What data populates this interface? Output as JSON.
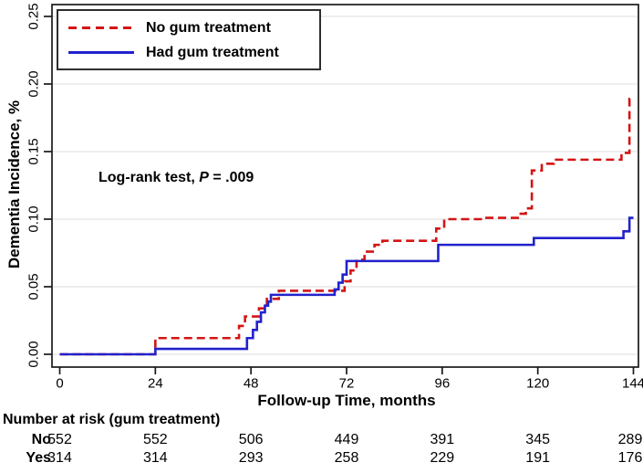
{
  "chart_data": {
    "type": "line",
    "subtype": "step-cumulative-incidence",
    "title": "",
    "xlabel": "Follow-up Time, months",
    "ylabel": "Dementia Incidence, %",
    "xlim": [
      0,
      144
    ],
    "ylim": [
      0,
      0.25
    ],
    "xticks": [
      0,
      24,
      48,
      72,
      96,
      120,
      144
    ],
    "ytick_labels": [
      "0.00",
      "0.05",
      "0.10",
      "0.15",
      "0.20",
      "0.25"
    ],
    "grid": true,
    "legend_position": "top-left",
    "annotation": {
      "prefix": "Log-rank test, ",
      "stat": "P",
      "suffix": " = .009"
    },
    "colors": {
      "no_treatment": "#d41414",
      "had_treatment": "#2222cc",
      "gridline": "#e8e8e8",
      "frame": "#1a1a1a"
    },
    "series": [
      {
        "name": "No gum treatment",
        "color_key": "no_treatment",
        "style": "dashed",
        "step_points": [
          [
            0,
            0
          ],
          [
            24,
            0.012
          ],
          [
            45,
            0.021
          ],
          [
            46.5,
            0.028
          ],
          [
            50,
            0.034
          ],
          [
            52,
            0.041
          ],
          [
            55,
            0.047
          ],
          [
            71.5,
            0.054
          ],
          [
            73,
            0.062
          ],
          [
            74.5,
            0.07
          ],
          [
            76.5,
            0.076
          ],
          [
            79,
            0.081
          ],
          [
            81,
            0.084
          ],
          [
            94.5,
            0.093
          ],
          [
            96.5,
            0.1
          ],
          [
            106,
            0.101
          ],
          [
            115,
            0.104
          ],
          [
            117,
            0.108
          ],
          [
            118.5,
            0.136
          ],
          [
            121,
            0.141
          ],
          [
            124,
            0.144
          ],
          [
            141,
            0.149
          ],
          [
            143,
            0.189
          ]
        ]
      },
      {
        "name": "Had gum treatment",
        "color_key": "had_treatment",
        "style": "solid",
        "step_points": [
          [
            0,
            0
          ],
          [
            24,
            0.004
          ],
          [
            47,
            0.012
          ],
          [
            48.5,
            0.018
          ],
          [
            49.5,
            0.024
          ],
          [
            50.5,
            0.031
          ],
          [
            51.5,
            0.036
          ],
          [
            52.3,
            0.039
          ],
          [
            53,
            0.044
          ],
          [
            69,
            0.048
          ],
          [
            70,
            0.053
          ],
          [
            71,
            0.059
          ],
          [
            72,
            0.069
          ],
          [
            95,
            0.081
          ],
          [
            119,
            0.086
          ],
          [
            141.5,
            0.091
          ],
          [
            143,
            0.101
          ]
        ]
      }
    ]
  },
  "risk_table": {
    "title": "Number at risk (gum treatment)",
    "rows": [
      {
        "label": "No",
        "values": [
          "552",
          "552",
          "506",
          "449",
          "391",
          "345",
          "289"
        ]
      },
      {
        "label": "Yes",
        "values": [
          "314",
          "314",
          "293",
          "258",
          "229",
          "191",
          "176"
        ]
      }
    ]
  }
}
